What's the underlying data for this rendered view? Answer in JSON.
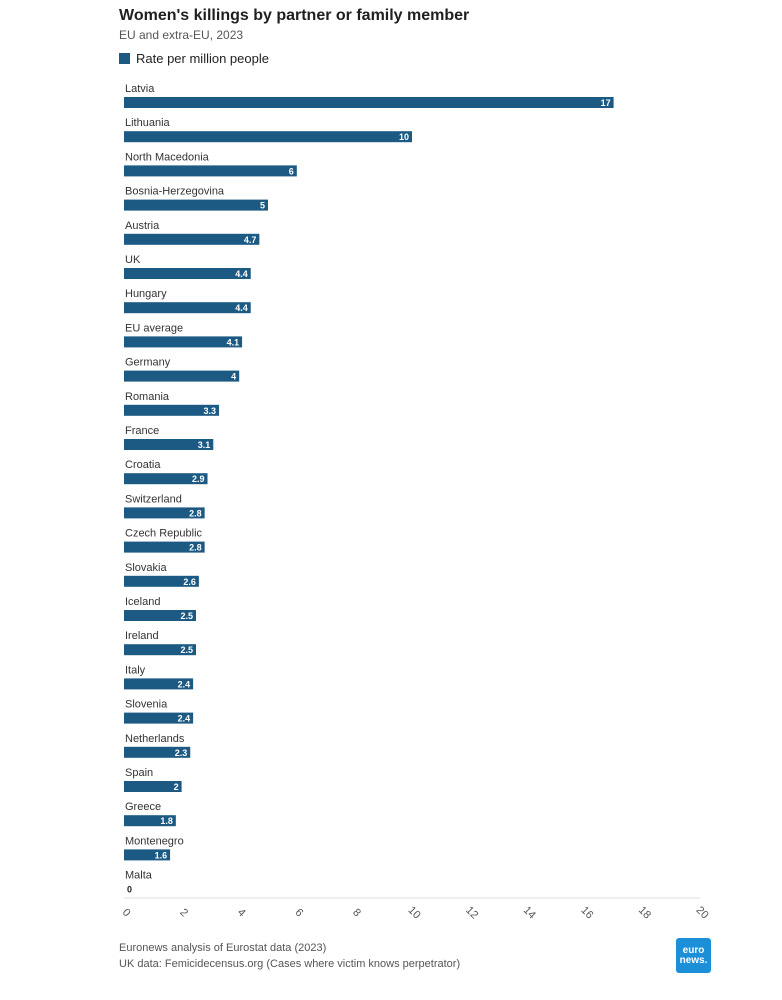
{
  "title": "Women's killings by partner or family member",
  "subtitle": "EU and extra-EU, 2023",
  "legend": {
    "label": "Rate per million people",
    "color": "#1c5a84"
  },
  "logo": {
    "line1": "euro",
    "line2": "news."
  },
  "source": {
    "line1": "Euronews analysis of Eurostat data (2023)",
    "line2": "UK data: Femicidecensus.org (Cases where victim knows perpetrator)"
  },
  "chart_data": {
    "type": "bar",
    "orientation": "horizontal",
    "categories": [
      "Latvia",
      "Lithuania",
      "North Macedonia",
      "Bosnia-Herzegovina",
      "Austria",
      "UK",
      "Hungary",
      "EU average",
      "Germany",
      "Romania",
      "France",
      "Croatia",
      "Switzerland",
      "Czech Republic",
      "Slovakia",
      "Iceland",
      "Ireland",
      "Italy",
      "Slovenia",
      "Netherlands",
      "Spain",
      "Greece",
      "Montenegro",
      "Malta"
    ],
    "series": [
      {
        "name": "Rate per million people",
        "values": [
          17,
          10,
          6,
          5,
          4.7,
          4.4,
          4.4,
          4.1,
          4,
          3.3,
          3.1,
          2.9,
          2.8,
          2.8,
          2.6,
          2.5,
          2.5,
          2.4,
          2.4,
          2.3,
          2,
          1.8,
          1.6,
          0
        ]
      }
    ],
    "xlim": [
      0,
      20
    ],
    "xticks": [
      0,
      2,
      4,
      6,
      8,
      10,
      12,
      14,
      16,
      18,
      20
    ],
    "bar_color": "#1c5a84",
    "grid": false
  }
}
